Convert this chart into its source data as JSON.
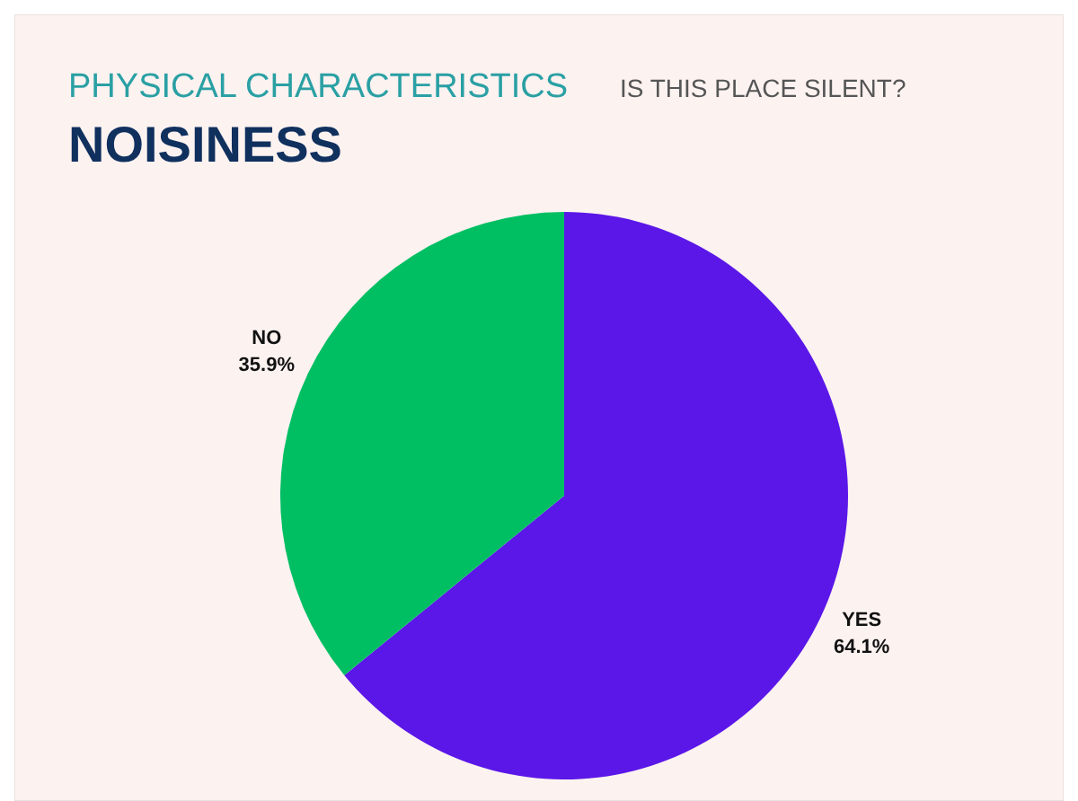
{
  "chart_data": {
    "type": "pie",
    "title": "NOISINESS",
    "subtitle": "PHYSICAL CHARACTERISTICS",
    "annotations": [
      "IS THIS PLACE SILENT?"
    ],
    "categories": [
      "YES",
      "NO"
    ],
    "values": [
      64.1,
      35.9
    ],
    "value_labels": [
      "64.1%",
      "35.9%"
    ],
    "colors": [
      "#5b17e8",
      "#00bf63"
    ]
  }
}
